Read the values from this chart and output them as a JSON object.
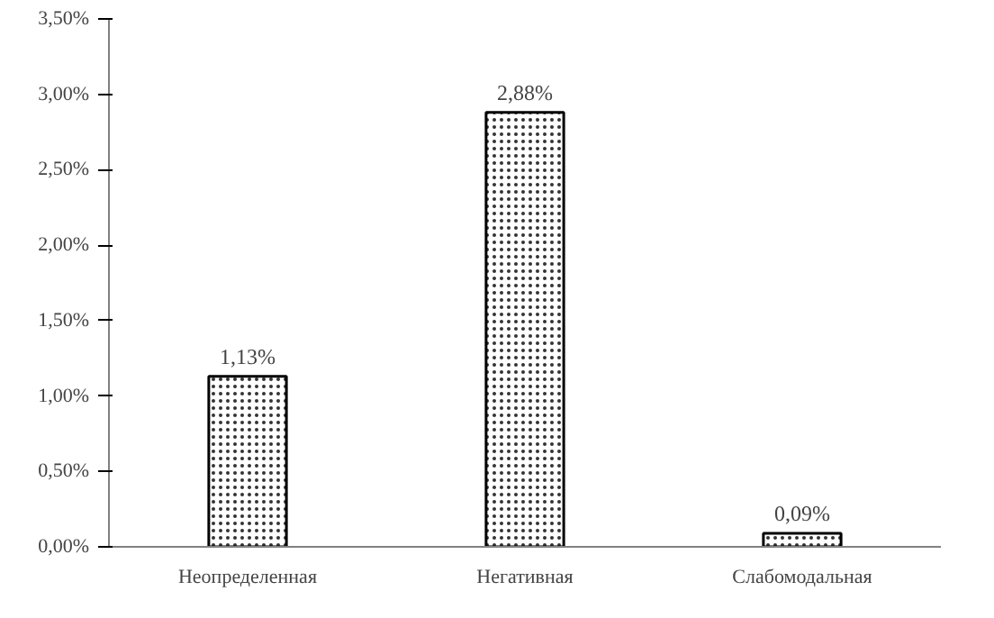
{
  "chart_data": {
    "type": "bar",
    "categories": [
      "Неопределенная",
      "Негативная",
      "Слабомодальная"
    ],
    "values": [
      1.13,
      2.88,
      0.09
    ],
    "colors": [
      "#ffffff",
      "#ffffff",
      "#ffffff"
    ],
    "value_labels": [
      "1,13%",
      "2,88%",
      "0,09%"
    ],
    "ylim": [
      0,
      3.5
    ],
    "yticks": [
      {
        "value": 0,
        "label": "0,00%"
      },
      {
        "value": 0.5,
        "label": "0,50%"
      },
      {
        "value": 1,
        "label": "1,00%"
      },
      {
        "value": 1.5,
        "label": "1,50%"
      },
      {
        "value": 2,
        "label": "2,00%"
      },
      {
        "value": 2.5,
        "label": "2,50%"
      },
      {
        "value": 3,
        "label": "3,00%"
      },
      {
        "value": 3.5,
        "label": "3,50%"
      }
    ],
    "grid": false
  }
}
